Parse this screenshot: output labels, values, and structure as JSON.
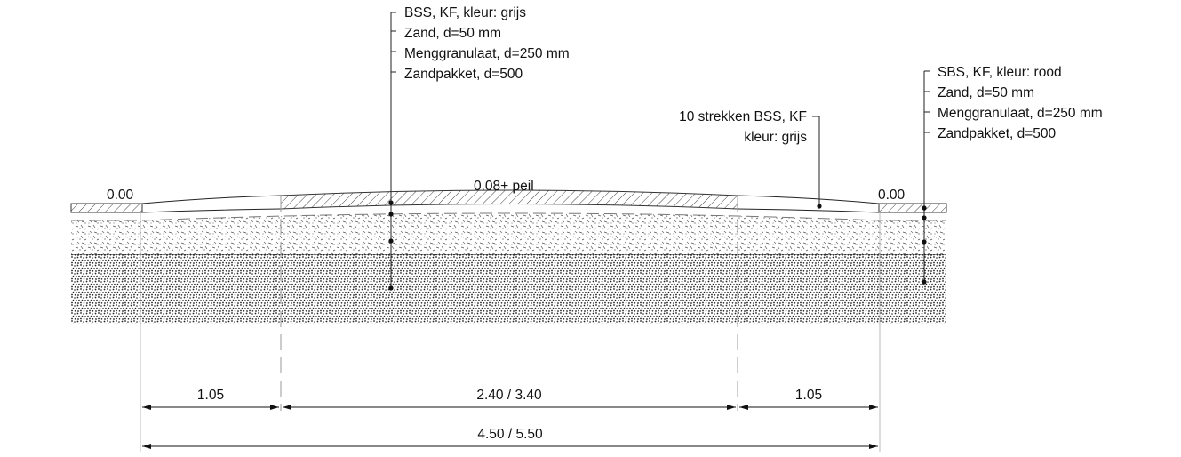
{
  "diagram": {
    "type": "road-cross-section",
    "callouts": {
      "center": [
        "BSS, KF, kleur: grijs",
        "Zand, d=50 mm",
        "Menggranulaat, d=250 mm",
        "Zandpakket, d=500"
      ],
      "right": [
        "SBS, KF, kleur: rood",
        "Zand, d=50 mm",
        "Menggranulaat, d=250 mm",
        "Zandpakket, d=500"
      ],
      "strips": [
        "10 strekken BSS, KF",
        "kleur: grijs"
      ]
    },
    "levels": {
      "left": "0.00",
      "center": "0.08+ peil",
      "right": "0.00"
    },
    "dimensions": {
      "left": "1.05",
      "middle": "2.40 / 3.40",
      "right": "1.05",
      "total": "4.50 / 5.50"
    }
  }
}
